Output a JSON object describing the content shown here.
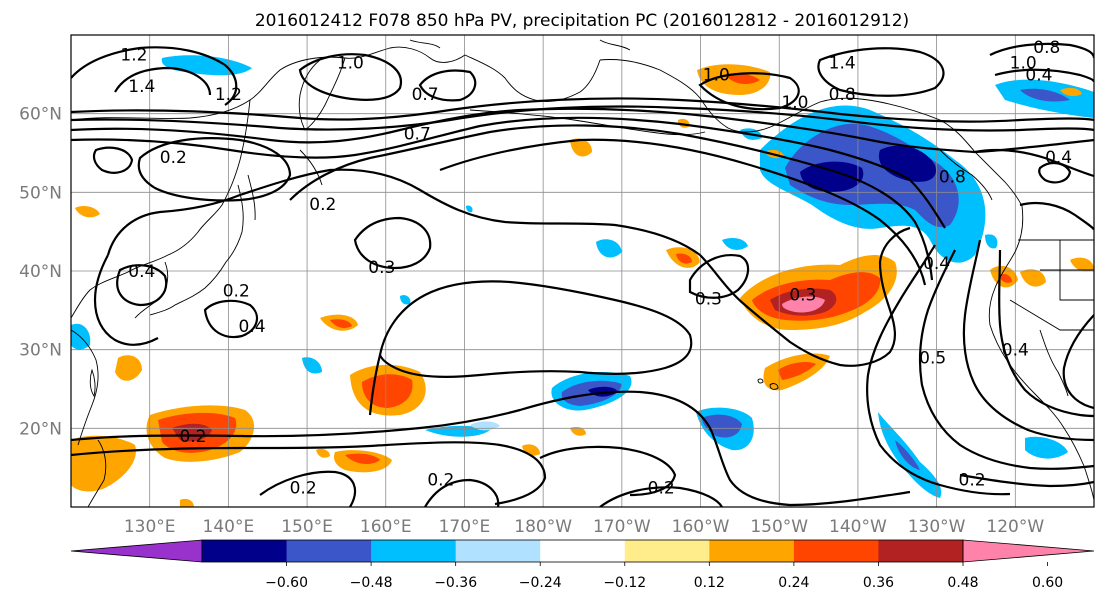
{
  "title": "2016012412 F078 850 hPa PV, precipitation PC (2016012812 - 2016012912)",
  "map": {
    "lon_range": [
      120,
      250
    ],
    "lat_range": [
      10,
      70
    ],
    "lon_ticks": [
      {
        "lon": 130,
        "label": "130°E"
      },
      {
        "lon": 140,
        "label": "140°E"
      },
      {
        "lon": 150,
        "label": "150°E"
      },
      {
        "lon": 160,
        "label": "160°E"
      },
      {
        "lon": 170,
        "label": "170°E"
      },
      {
        "lon": 180,
        "label": "180°W"
      },
      {
        "lon": 190,
        "label": "170°W"
      },
      {
        "lon": 200,
        "label": "160°W"
      },
      {
        "lon": 210,
        "label": "150°W"
      },
      {
        "lon": 220,
        "label": "140°W"
      },
      {
        "lon": 230,
        "label": "130°W"
      },
      {
        "lon": 240,
        "label": "120°W"
      }
    ],
    "lat_ticks": [
      {
        "lat": 20,
        "label": "20°N"
      },
      {
        "lat": 30,
        "label": "30°N"
      },
      {
        "lat": 40,
        "label": "40°N"
      },
      {
        "lat": 50,
        "label": "50°N"
      },
      {
        "lat": 60,
        "label": "60°N"
      }
    ],
    "contour_labels": [
      {
        "text": "1.2",
        "lon": 128,
        "lat": 67.5
      },
      {
        "text": "1.0",
        "lon": 155.5,
        "lat": 66.5
      },
      {
        "text": "1.4",
        "lon": 129,
        "lat": 63.5
      },
      {
        "text": "1.2",
        "lon": 140,
        "lat": 62.5
      },
      {
        "text": "0.7",
        "lon": 165,
        "lat": 62.5
      },
      {
        "text": "0.7",
        "lon": 164,
        "lat": 57.5
      },
      {
        "text": "0.2",
        "lon": 133,
        "lat": 54.5
      },
      {
        "text": "0.2",
        "lon": 152,
        "lat": 48.5
      },
      {
        "text": "0.3",
        "lon": 159.5,
        "lat": 40.5
      },
      {
        "text": "0.4",
        "lon": 129,
        "lat": 40
      },
      {
        "text": "0.2",
        "lon": 141,
        "lat": 37.5
      },
      {
        "text": "0.4",
        "lon": 143,
        "lat": 33
      },
      {
        "text": "0.3",
        "lon": 201,
        "lat": 36.5
      },
      {
        "text": "0.3",
        "lon": 213,
        "lat": 37
      },
      {
        "text": "0.2",
        "lon": 135.5,
        "lat": 19
      },
      {
        "text": "0.2",
        "lon": 149.5,
        "lat": 12.5
      },
      {
        "text": "0.2",
        "lon": 167,
        "lat": 13.5
      },
      {
        "text": "0.2",
        "lon": 195,
        "lat": 12.5
      },
      {
        "text": "1.4",
        "lon": 218,
        "lat": 66.5
      },
      {
        "text": "0.8",
        "lon": 218,
        "lat": 62.5
      },
      {
        "text": "1.0",
        "lon": 202,
        "lat": 65
      },
      {
        "text": "1.0",
        "lon": 212,
        "lat": 61.5
      },
      {
        "text": "0.8",
        "lon": 232,
        "lat": 52
      },
      {
        "text": "0.4",
        "lon": 230,
        "lat": 41
      },
      {
        "text": "0.5",
        "lon": 229.5,
        "lat": 29
      },
      {
        "text": "0.4",
        "lon": 240,
        "lat": 30
      },
      {
        "text": "0.2",
        "lon": 234.5,
        "lat": 13.5
      },
      {
        "text": "0.4",
        "lon": 245.5,
        "lat": 54.5
      },
      {
        "text": "0.4",
        "lon": 243,
        "lat": 65
      },
      {
        "text": "1.0",
        "lon": 241,
        "lat": 66.5
      },
      {
        "text": "0.8",
        "lon": 244,
        "lat": 68.5
      }
    ]
  },
  "colorbar": {
    "colors": [
      "#9932cc",
      "#00008b",
      "#3a56c8",
      "#00bfff",
      "#b0e2ff",
      "#ffffff",
      "#ffec8b",
      "#ffa500",
      "#ff4500",
      "#b22222",
      "#ff82ab"
    ],
    "ticks": [
      "−0.60",
      "−0.48",
      "−0.36",
      "−0.24",
      "−0.12",
      "0.12",
      "0.24",
      "0.36",
      "0.48",
      "0.60"
    ]
  },
  "precip_colors": {
    "darkpurple": "#9932cc",
    "navy": "#00008b",
    "royal": "#3a56c8",
    "sky": "#00bfff",
    "pale": "#b0e2ff",
    "yellow": "#ffec8b",
    "orange": "#ffa500",
    "red": "#ff4500",
    "brick": "#b22222",
    "pink": "#ff82ab"
  }
}
